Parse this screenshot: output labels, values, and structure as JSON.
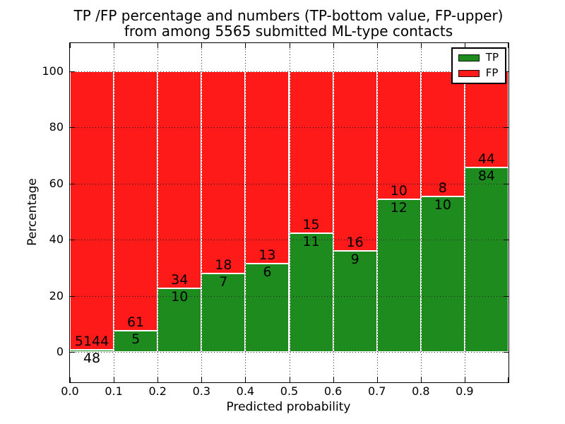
{
  "chart_data": {
    "type": "bar",
    "stacked": true,
    "title_lines": [
      "TP /FP percentage and numbers (TP-bottom value, FP-upper)",
      "from among 5565 submitted ML-type contacts"
    ],
    "xlabel": "Predicted probability",
    "ylabel": "Percentage",
    "total_contacts": 5565,
    "categories": [
      0.0,
      0.1,
      0.2,
      0.3,
      0.4,
      0.5,
      0.6,
      0.7,
      0.8,
      0.9
    ],
    "bin_width": 0.1,
    "series": [
      {
        "name": "TP",
        "color": "#1e8b1e",
        "counts": [
          48,
          5,
          10,
          7,
          6,
          11,
          9,
          12,
          10,
          84
        ]
      },
      {
        "name": "FP",
        "color": "#ff1a1a",
        "counts": [
          5144,
          61,
          34,
          18,
          13,
          15,
          16,
          10,
          8,
          44
        ]
      }
    ],
    "bars_show": "percentage = count / (TP+FP) per bin, stacked to 100",
    "xticks": [
      "0.0",
      "0.1",
      "0.2",
      "0.3",
      "0.4",
      "0.5",
      "0.6",
      "0.7",
      "0.8",
      "0.9"
    ],
    "yticks": [
      0,
      20,
      40,
      60,
      80,
      100
    ],
    "xlim": [
      0.0,
      1.0
    ],
    "ylim": [
      -10.7,
      110
    ],
    "grid": "dotted black, on top of bars",
    "bar_edge_color": "#ffffff",
    "legend_position": "upper right",
    "legend": [
      "TP",
      "FP"
    ],
    "text_color": "#000000",
    "background_color": "#ffffff"
  }
}
